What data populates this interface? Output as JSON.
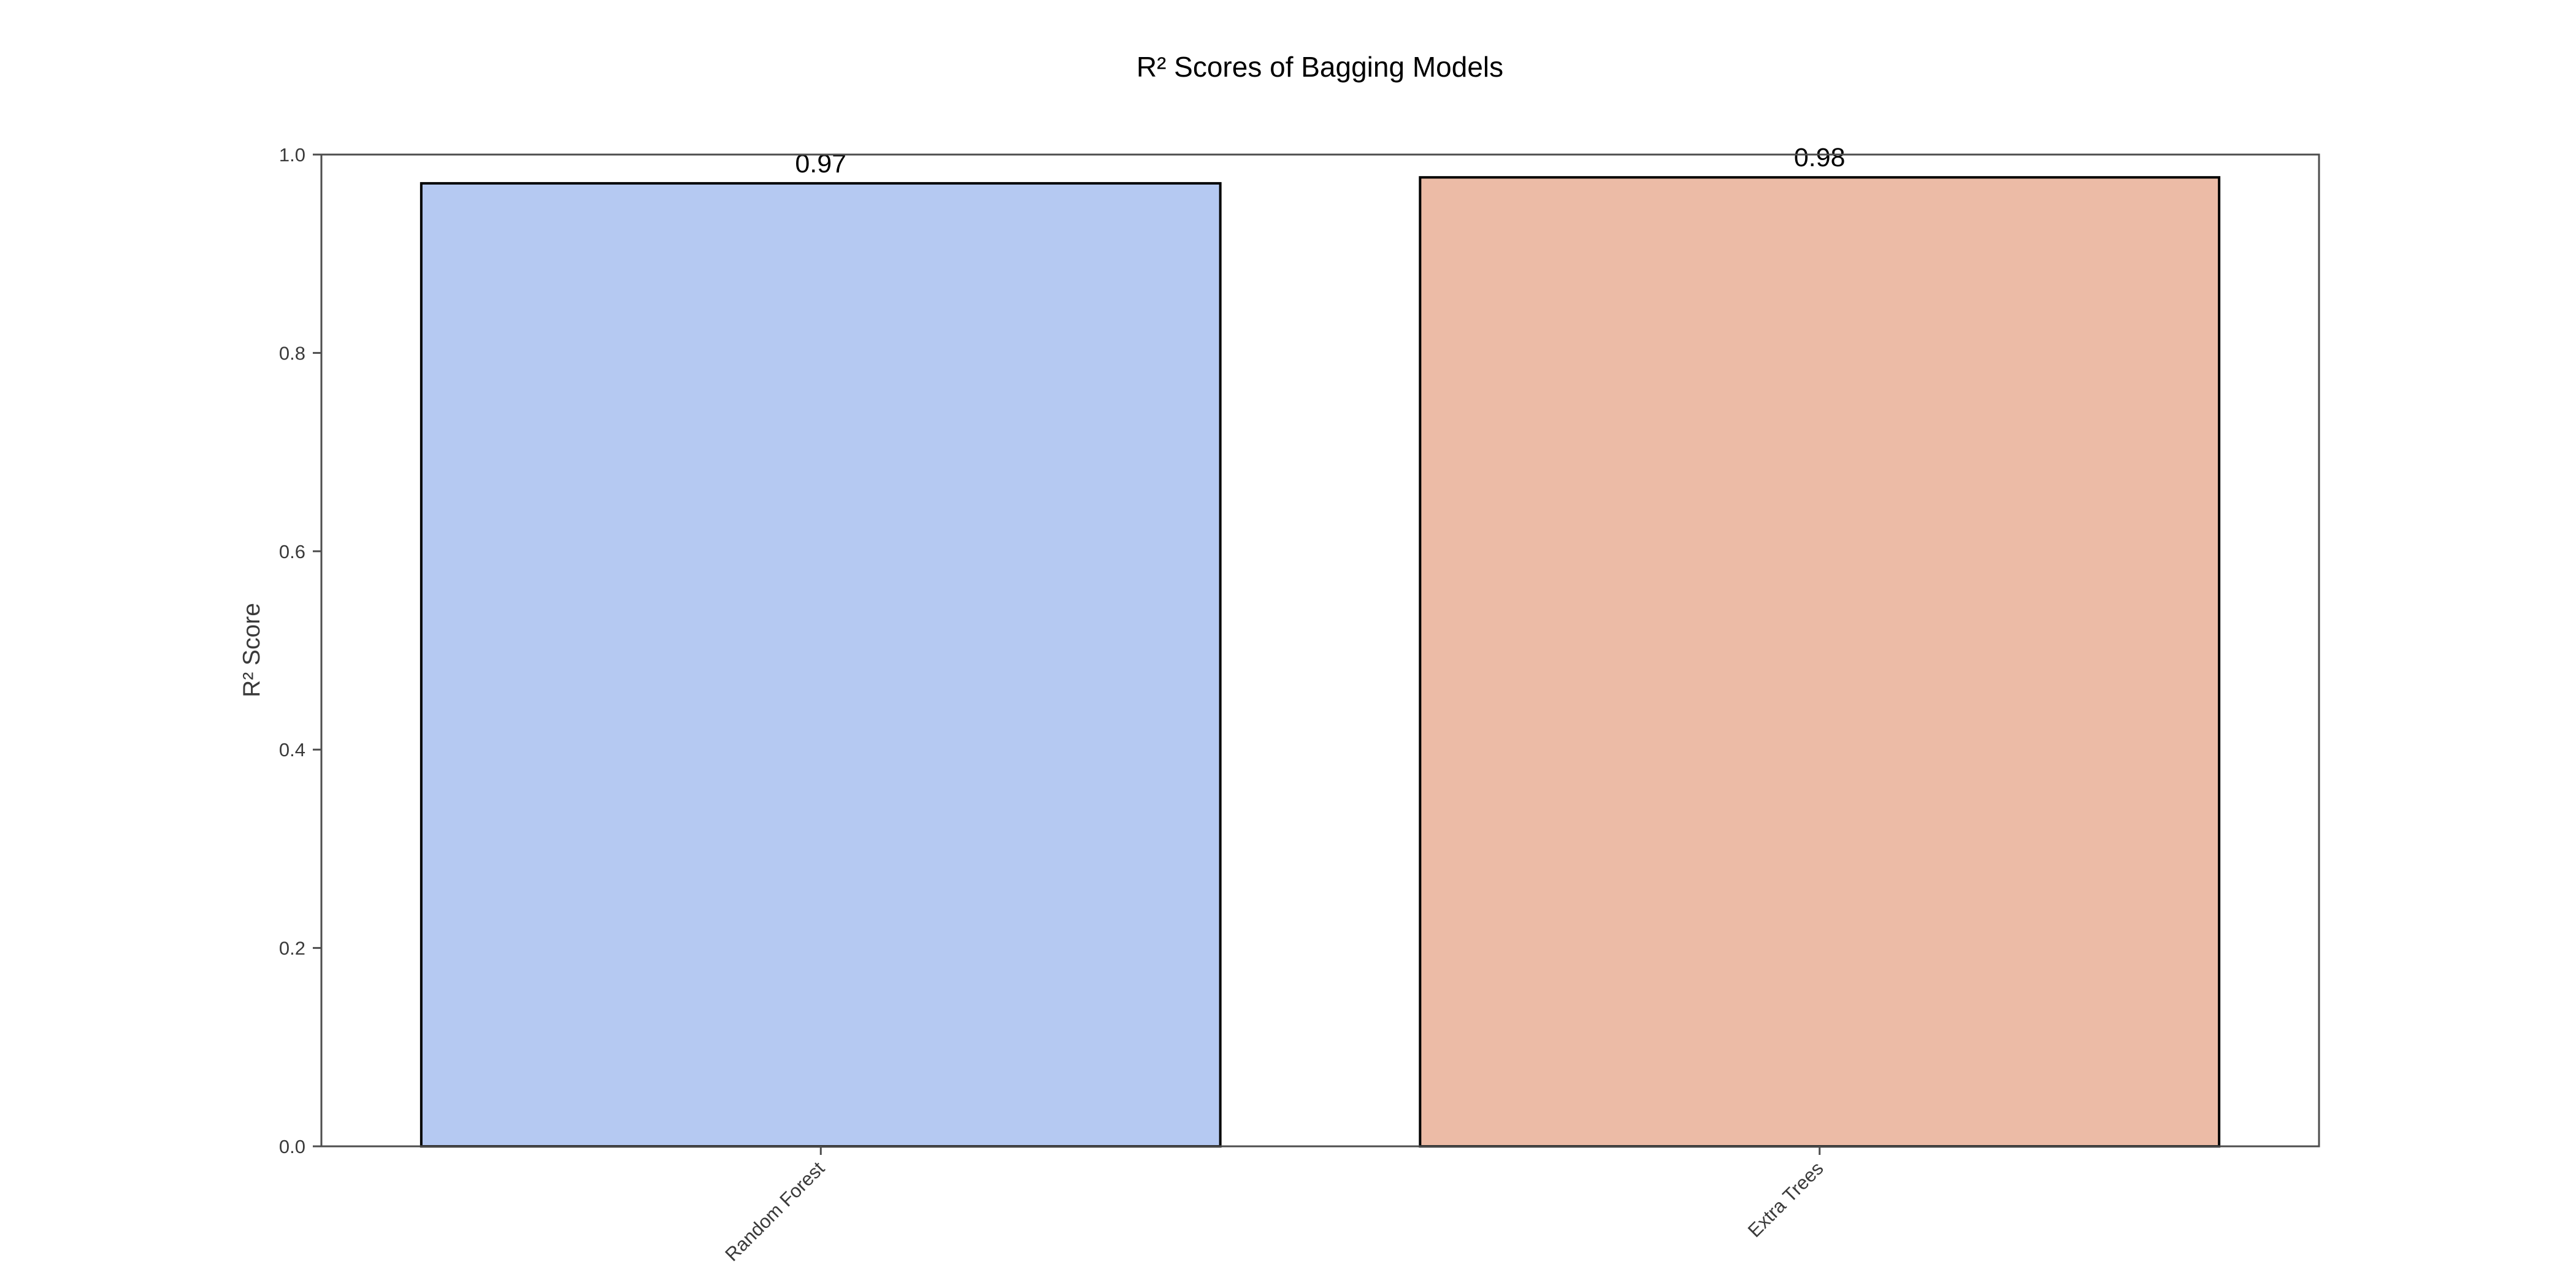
{
  "chart_data": {
    "type": "bar",
    "title": "R² Scores of Bagging Models",
    "xlabel": "",
    "ylabel": "R² Score",
    "categories": [
      "Random Forest",
      "Extra Trees"
    ],
    "values": [
      0.971,
      0.977
    ],
    "data_labels": [
      "0.97",
      "0.98"
    ],
    "colors": [
      "#b5c9f2",
      "#ecbba6"
    ],
    "ylim": [
      0,
      1.0
    ],
    "yticks": [
      "0.0",
      "0.2",
      "0.4",
      "0.6",
      "0.8",
      "1.0"
    ],
    "grid": false,
    "legend": "none"
  }
}
